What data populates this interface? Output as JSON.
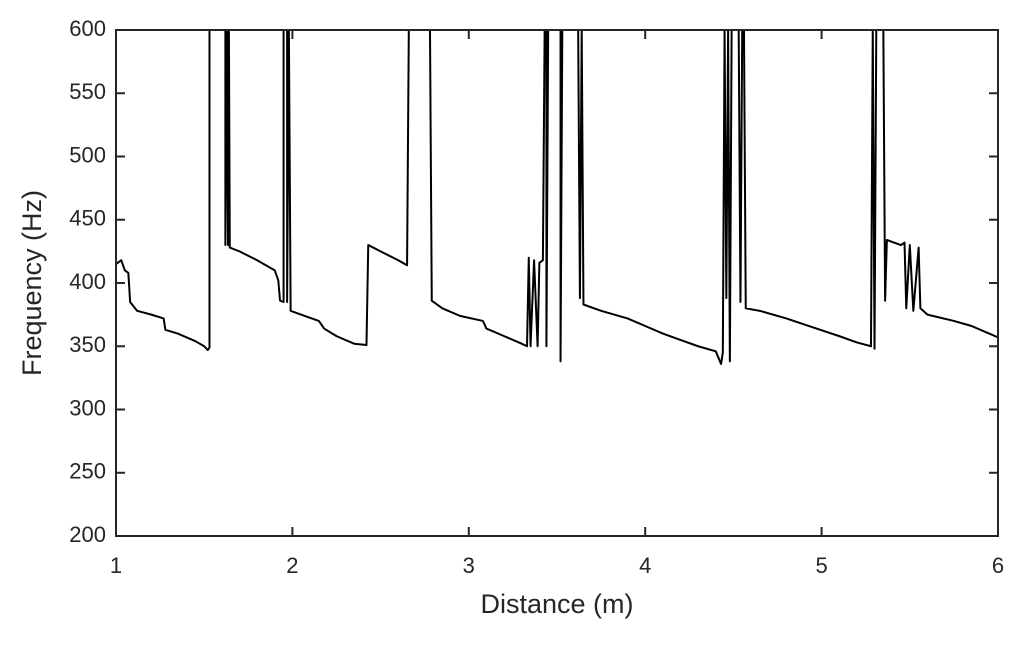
{
  "chart_data": {
    "type": "line",
    "xlabel": "Distance (m)",
    "ylabel": "Frequency (Hz)",
    "xlim": [
      1,
      6
    ],
    "ylim": [
      200,
      600
    ],
    "xticks": [
      1,
      2,
      3,
      4,
      5,
      6
    ],
    "yticks": [
      200,
      250,
      300,
      350,
      400,
      450,
      500,
      550,
      600
    ],
    "grid": false,
    "color": "#000000",
    "x": [
      1.0,
      1.03,
      1.05,
      1.07,
      1.08,
      1.12,
      1.2,
      1.27,
      1.28,
      1.35,
      1.45,
      1.5,
      1.52,
      1.53,
      1.53,
      1.62,
      1.62,
      1.63,
      1.635,
      1.64,
      1.645,
      1.7,
      1.8,
      1.9,
      1.92,
      1.93,
      1.95,
      1.95,
      1.97,
      1.97,
      1.98,
      1.99,
      2.05,
      2.15,
      2.18,
      2.25,
      2.35,
      2.42,
      2.43,
      2.5,
      2.6,
      2.65,
      2.66,
      2.78,
      2.79,
      2.85,
      2.95,
      3.08,
      3.1,
      3.2,
      3.3,
      3.33,
      3.34,
      3.35,
      3.37,
      3.39,
      3.4,
      3.42,
      3.43,
      3.44,
      3.44,
      3.45,
      3.52,
      3.52,
      3.53,
      3.62,
      3.63,
      3.64,
      3.65,
      3.75,
      3.9,
      4.0,
      4.1,
      4.2,
      4.3,
      4.4,
      4.43,
      4.44,
      4.45,
      4.46,
      4.47,
      4.48,
      4.49,
      4.53,
      4.54,
      4.55,
      4.56,
      4.57,
      4.65,
      4.8,
      4.95,
      5.1,
      5.2,
      5.28,
      5.29,
      5.3,
      5.31,
      5.35,
      5.36,
      5.37,
      5.45,
      5.47,
      5.48,
      5.5,
      5.52,
      5.55,
      5.56,
      5.6,
      5.75,
      5.85,
      5.95,
      6.0
    ],
    "values": [
      415,
      418,
      410,
      408,
      385,
      378,
      375,
      372,
      363,
      360,
      354,
      350,
      347,
      349,
      600,
      600,
      430,
      600,
      430,
      600,
      428,
      425,
      418,
      410,
      402,
      386,
      385,
      600,
      600,
      385,
      600,
      378,
      375,
      370,
      364,
      358,
      352,
      351,
      430,
      425,
      418,
      414,
      600,
      600,
      386,
      380,
      374,
      370,
      364,
      358,
      352,
      350,
      420,
      350,
      418,
      350,
      416,
      418,
      600,
      600,
      350,
      600,
      600,
      338,
      600,
      600,
      388,
      600,
      383,
      378,
      372,
      366,
      360,
      355,
      350,
      346,
      336,
      345,
      600,
      388,
      600,
      338,
      600,
      600,
      385,
      600,
      600,
      380,
      378,
      372,
      365,
      358,
      353,
      350,
      600,
      348,
      600,
      600,
      386,
      434,
      430,
      432,
      380,
      430,
      378,
      428,
      380,
      375,
      370,
      366,
      360,
      357
    ]
  }
}
